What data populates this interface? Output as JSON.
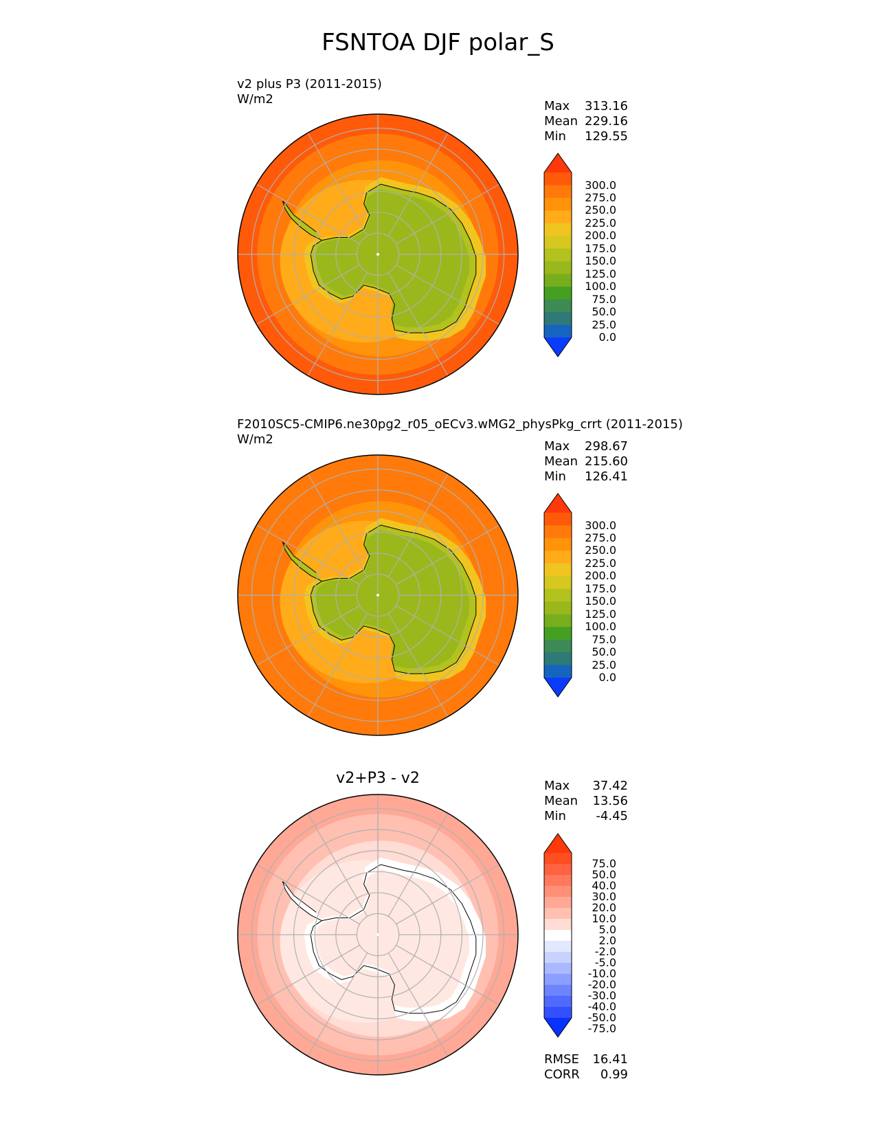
{
  "title": "FSNTOA DJF polar_S",
  "chart_data": [
    {
      "type": "heatmap",
      "projection": "south polar stereographic",
      "title_line1": "v2 plus P3 (2011-2015)",
      "title_line2": "W/m2",
      "stats": [
        {
          "label": "Max",
          "value": "313.16"
        },
        {
          "label": "Mean",
          "value": "229.16"
        },
        {
          "label": "Min",
          "value": "129.55"
        }
      ],
      "colorbar": {
        "ticks": [
          "300.0",
          "275.0",
          "250.0",
          "225.0",
          "200.0",
          "175.0",
          "150.0",
          "125.0",
          "100.0",
          "75.0",
          "50.0",
          "25.0",
          "0.0"
        ],
        "colors": [
          "#ff3a0a",
          "#ff5a0a",
          "#ff7a0a",
          "#ff930a",
          "#ffab1a",
          "#f0c520",
          "#d6c820",
          "#b2c21e",
          "#9ab81b",
          "#77ae1e",
          "#45a022",
          "#3d8a55",
          "#2e7a78",
          "#1565c0",
          "#0a3cff"
        ]
      },
      "regions": {
        "ocean_outer": "#ff5a0a",
        "ocean_mid": "#ff7a0a",
        "ocean_inner": "#ff930a",
        "sea_ice": "#ffab1a",
        "coast_band": "#f0c520",
        "land": "#9ab81b",
        "land_edge": "#b2c21e"
      }
    },
    {
      "type": "heatmap",
      "projection": "south polar stereographic",
      "title_line1": "F2010SC5-CMIP6.ne30pg2_r05_oECv3.wMG2_physPkg_crrt (2011-2015)",
      "title_line2": "W/m2",
      "stats": [
        {
          "label": "Max",
          "value": "298.67"
        },
        {
          "label": "Mean",
          "value": "215.60"
        },
        {
          "label": "Min",
          "value": "126.41"
        }
      ],
      "colorbar": {
        "ticks": [
          "300.0",
          "275.0",
          "250.0",
          "225.0",
          "200.0",
          "175.0",
          "150.0",
          "125.0",
          "100.0",
          "75.0",
          "50.0",
          "25.0",
          "0.0"
        ],
        "colors": [
          "#ff3a0a",
          "#ff5a0a",
          "#ff7a0a",
          "#ff930a",
          "#ffab1a",
          "#f0c520",
          "#d6c820",
          "#b2c21e",
          "#9ab81b",
          "#77ae1e",
          "#45a022",
          "#3d8a55",
          "#2e7a78",
          "#1565c0",
          "#0a3cff"
        ]
      },
      "regions": {
        "ocean_outer": "#ff7a0a",
        "ocean_mid": "#ff7a0a",
        "ocean_inner": "#ff930a",
        "sea_ice": "#ffab1a",
        "coast_band": "#f0c520",
        "land": "#9ab81b",
        "land_edge": "#b2c21e"
      }
    },
    {
      "type": "heatmap",
      "projection": "south polar stereographic",
      "center_title": "v2+P3 - v2",
      "stats": [
        {
          "label": "Max",
          "value": "37.42"
        },
        {
          "label": "Mean",
          "value": "13.56"
        },
        {
          "label": "Min",
          "value": "-4.45"
        }
      ],
      "colorbar": {
        "ticks": [
          "75.0",
          "50.0",
          "40.0",
          "30.0",
          "20.0",
          "10.0",
          "5.0",
          "2.0",
          "-2.0",
          "-5.0",
          "-10.0",
          "-20.0",
          "-30.0",
          "-40.0",
          "-50.0",
          "-75.0"
        ],
        "colors": [
          "#ff3a0a",
          "#ff4e22",
          "#ff6240",
          "#ff7a5c",
          "#ff9078",
          "#ffa896",
          "#ffc0b2",
          "#ffdcd4",
          "#ffffff",
          "#e2e8ff",
          "#c8d2ff",
          "#aab8ff",
          "#8c9eff",
          "#6e84ff",
          "#506aff",
          "#3250ff",
          "#0a32ff"
        ]
      },
      "regions": {
        "ocean_outer": "#ffa896",
        "ocean_mid": "#ffc0b2",
        "ocean_inner": "#ffdcd4",
        "sea_ice": "#ffe8e2",
        "coast_band": "#ffffff",
        "land": "#ffe8e2",
        "land_edge": "#ffffff"
      },
      "error_metrics": [
        {
          "label": "RMSE",
          "value": "16.41"
        },
        {
          "label": "CORR",
          "value": "0.99"
        }
      ]
    }
  ]
}
